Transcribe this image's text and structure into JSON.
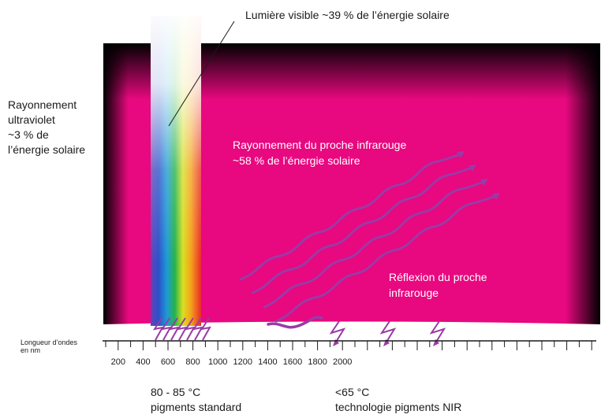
{
  "labels": {
    "visible": "Lumière visible ~39 % de l’énergie solaire",
    "uv_lines": [
      "Rayonnement",
      "ultraviolet",
      "~3 % de",
      "l’énergie solaire"
    ],
    "nir_lines": [
      "Rayonnement du proche infrarouge",
      "~58 % de l’énergie solaire"
    ],
    "reflection_lines": [
      "Réflexion du proche",
      "infrarouge"
    ],
    "axis_title_lines": [
      "Longueur d’ondes",
      "en nm"
    ]
  },
  "axis": {
    "ticks": [
      "200",
      "400",
      "600",
      "800",
      "1000",
      "1200",
      "1400",
      "1600",
      "1800",
      "2000"
    ]
  },
  "bottom": {
    "standard": {
      "temperature": "80 - 85 °C",
      "label": "pigments standard"
    },
    "nir": {
      "temperature": "<65 °C",
      "label": "technologie pigments NIR"
    }
  },
  "colors": {
    "magenta": "#e8087f",
    "arrow_purple": "#9b3aa6",
    "dark": "#000000"
  }
}
